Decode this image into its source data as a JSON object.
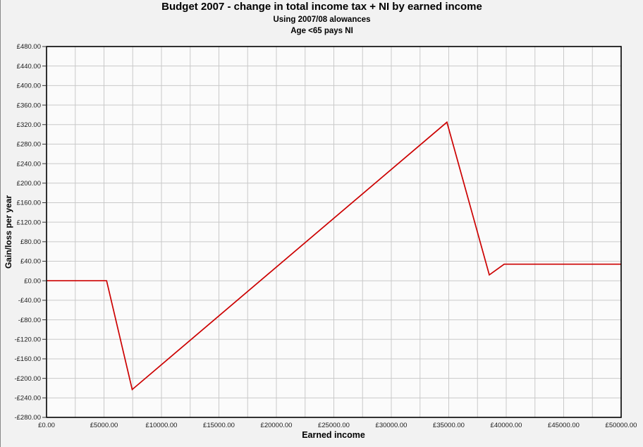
{
  "colors": {
    "page_background": "#f2f2f2",
    "plot_background": "#fbfbfb",
    "gridline": "#c9c9c9",
    "plot_border": "#000000",
    "tick": "#333333",
    "tick_label": "#1a1a1a",
    "series_line": "#cc0000"
  },
  "chart_data": {
    "type": "line",
    "title": "Budget 2007 - change in total income tax + NI by earned income",
    "subtitle": "Using 2007/08 alowances",
    "subtitle2": "Age <65 pays NI",
    "xlabel": "Earned income",
    "ylabel": "Gain/loss per year",
    "xlim": [
      0,
      50000
    ],
    "ylim": [
      -280,
      480
    ],
    "grid": true,
    "legend": "none",
    "x_minor_grid_step": 2500,
    "x_ticks": {
      "values": [
        0,
        5000,
        10000,
        15000,
        20000,
        25000,
        30000,
        35000,
        40000,
        45000,
        50000
      ],
      "labels": [
        "£0.00",
        "£5000.00",
        "£10000.00",
        "£15000.00",
        "£20000.00",
        "£25000.00",
        "£30000.00",
        "£35000.00",
        "£40000.00",
        "£45000.00",
        "£50000.00"
      ]
    },
    "y_ticks": {
      "values": [
        480,
        440,
        400,
        360,
        320,
        280,
        240,
        200,
        160,
        120,
        80,
        40,
        0,
        -40,
        -80,
        -120,
        -160,
        -200,
        -240,
        -280
      ],
      "labels": [
        "£480.00",
        "£440.00",
        "£400.00",
        "£360.00",
        "£320.00",
        "£280.00",
        "£240.00",
        "£200.00",
        "£160.00",
        "£120.00",
        "£80.00",
        "£40.00",
        "£0.00",
        "-£40.00",
        "-£80.00",
        "-£120.00",
        "-£160.00",
        "-£200.00",
        "-£240.00",
        "-£280.00"
      ]
    },
    "series": [
      {
        "name": "Change in total income tax + NI",
        "color": "#cc0000",
        "points": [
          [
            0,
            0
          ],
          [
            5225,
            0
          ],
          [
            7455,
            -223
          ],
          [
            34840,
            325
          ],
          [
            38525,
            12
          ],
          [
            39825,
            34
          ],
          [
            50000,
            34
          ]
        ]
      }
    ]
  }
}
